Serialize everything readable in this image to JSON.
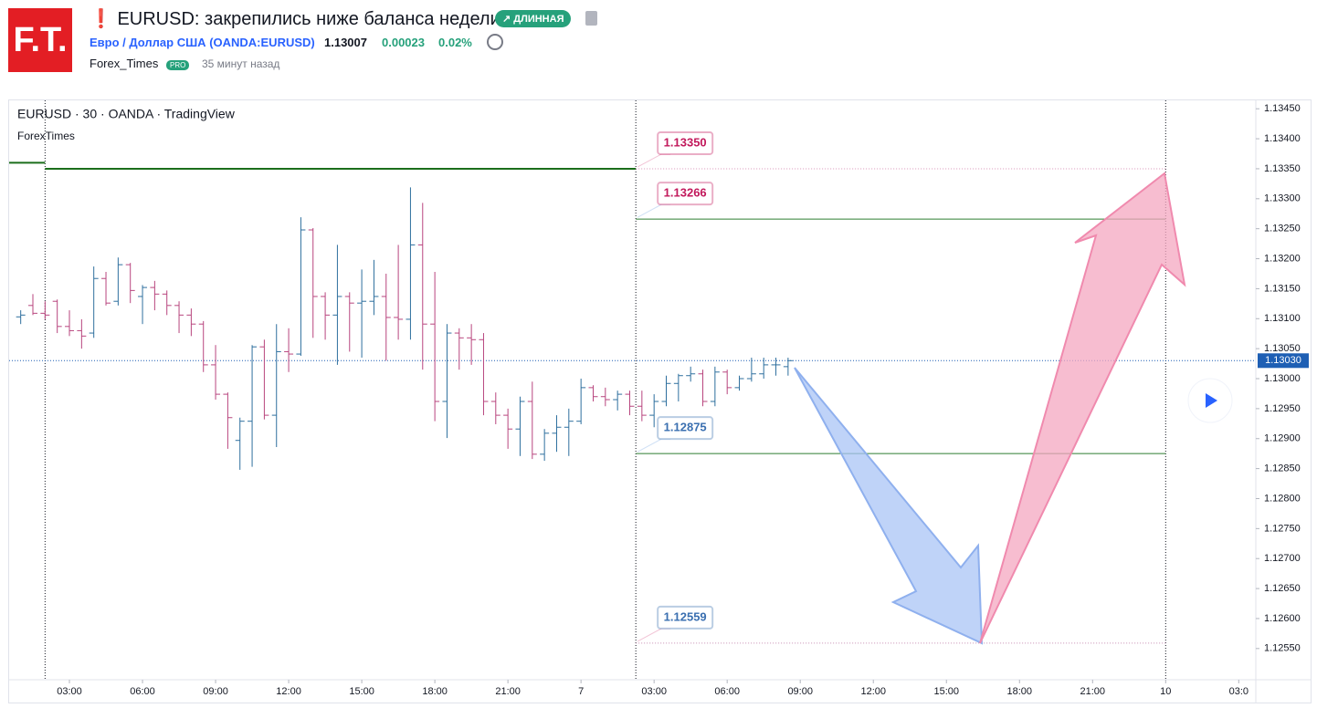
{
  "header": {
    "logo": "F.T.",
    "title": "❗ EURUSD: закрепились ниже баланса недели.",
    "badge": "↗ ДЛИННАЯ",
    "symbol_name": "Евро / Доллар США",
    "symbol_code": "(OANDA:EURUSD)",
    "price": "1.13007",
    "change": "0.00023",
    "change_pct": "0.02%",
    "author": "Forex_Times",
    "author_badge": "PRO",
    "time_ago": "35 минут назад"
  },
  "chart_data": {
    "type": "ohlc",
    "title": "EURUSD · 30 · OANDA · TradingView",
    "subtitle": "ForexTimes",
    "up_color": "#2e6f9e",
    "down_color": "#b8457e",
    "x": [
      1,
      1.5,
      2,
      2.5,
      3,
      3.5,
      4,
      4.5,
      5,
      5.5,
      6,
      6.5,
      7,
      7.5,
      8,
      8.5,
      9,
      9.5,
      10,
      10.5,
      11,
      11.5,
      12,
      12.5,
      13,
      13.5,
      14,
      14.5,
      15,
      15.5,
      16,
      16.5,
      17,
      17.5,
      18,
      18.5,
      19,
      19.5,
      20,
      20.5,
      21,
      21.5,
      22,
      22.5,
      23,
      23.5,
      24,
      24.5,
      25,
      25.5,
      26,
      26.5,
      27,
      27.5,
      28,
      28.5,
      29,
      29.5,
      30,
      30.5,
      31,
      31.5,
      32,
      32.5
    ],
    "open": [
      1.13103,
      1.13122,
      1.13109,
      1.13129,
      1.13087,
      1.1308,
      1.13076,
      1.13167,
      1.13129,
      1.1319,
      1.13137,
      1.13152,
      1.13141,
      1.13122,
      1.13106,
      1.13091,
      1.13023,
      1.12974,
      1.12897,
      1.12929,
      1.13053,
      1.12939,
      1.13045,
      1.13041,
      1.13248,
      1.13137,
      1.13106,
      1.13137,
      1.13126,
      1.13129,
      1.13137,
      1.13102,
      1.13099,
      1.13223,
      1.13091,
      1.12962,
      1.13076,
      1.13068,
      1.13065,
      1.12962,
      1.12939,
      1.12916,
      1.12962,
      1.12874,
      1.12909,
      1.12919,
      1.12929,
      1.12985,
      1.1297,
      1.12965,
      1.12974,
      1.12954,
      1.12939,
      1.12962,
      1.12992,
      1.13005,
      1.13008,
      1.12962,
      1.13011,
      1.12985,
      1.13,
      1.13008,
      1.13023,
      1.1302
    ],
    "high": [
      1.13114,
      1.13141,
      1.13129,
      1.13132,
      1.13114,
      1.13099,
      1.13187,
      1.13178,
      1.13202,
      1.13193,
      1.13156,
      1.13163,
      1.13147,
      1.13129,
      1.13117,
      1.13096,
      1.13056,
      1.12977,
      1.12935,
      1.13056,
      1.13065,
      1.13091,
      1.13084,
      1.13269,
      1.13251,
      1.13144,
      1.13223,
      1.13144,
      1.13182,
      1.13198,
      1.13175,
      1.13223,
      1.13319,
      1.13293,
      1.13178,
      1.13091,
      1.13084,
      1.13091,
      1.13076,
      1.12977,
      1.1295,
      1.1297,
      1.12995,
      1.12916,
      1.12939,
      1.1295,
      1.13,
      1.12989,
      1.12985,
      1.1298,
      1.1298,
      1.1298,
      1.12974,
      1.13005,
      1.13008,
      1.1302,
      1.13015,
      1.1302,
      1.13015,
      1.13005,
      1.13035,
      1.13035,
      1.13035,
      1.13035
    ],
    "low": [
      1.13091,
      1.13106,
      1.13099,
      1.13076,
      1.13071,
      1.1305,
      1.13068,
      1.13122,
      1.13122,
      1.13126,
      1.13091,
      1.13114,
      1.13106,
      1.13076,
      1.13071,
      1.13011,
      1.12965,
      1.12883,
      1.12848,
      1.12853,
      1.12932,
      1.12886,
      1.13011,
      1.13038,
      1.13068,
      1.13065,
      1.13023,
      1.13045,
      1.13035,
      1.13106,
      1.1303,
      1.13065,
      1.13065,
      1.13015,
      1.12929,
      1.12901,
      1.13015,
      1.13023,
      1.12939,
      1.12924,
      1.12883,
      1.12871,
      1.12866,
      1.12863,
      1.12878,
      1.12871,
      1.12924,
      1.12962,
      1.12954,
      1.12947,
      1.12939,
      1.12929,
      1.12919,
      1.12954,
      1.12962,
      1.12995,
      1.12954,
      1.12954,
      1.12974,
      1.1298,
      1.12995,
      1.13,
      1.13005,
      1.13005
    ],
    "close": [
      1.13106,
      1.13109,
      1.13106,
      1.13087,
      1.1308,
      1.13071,
      1.13167,
      1.13126,
      1.1319,
      1.13147,
      1.13152,
      1.13141,
      1.13122,
      1.13106,
      1.13091,
      1.13023,
      1.12974,
      1.12935,
      1.12929,
      1.13053,
      1.12939,
      1.13045,
      1.13041,
      1.13248,
      1.13137,
      1.13106,
      1.13137,
      1.13126,
      1.13129,
      1.13137,
      1.13102,
      1.13099,
      1.13223,
      1.13091,
      1.12962,
      1.13076,
      1.13068,
      1.13065,
      1.12962,
      1.12939,
      1.12916,
      1.12962,
      1.12874,
      1.12909,
      1.12919,
      1.12929,
      1.12985,
      1.1297,
      1.12965,
      1.12974,
      1.12954,
      1.12939,
      1.12962,
      1.12992,
      1.13005,
      1.13008,
      1.12962,
      1.13011,
      1.12985,
      1.13,
      1.13008,
      1.13023,
      1.13023,
      1.1303
    ],
    "xlim": [
      0.525,
      51.7
    ],
    "ylim": [
      1.12498,
      1.13464
    ],
    "xticks": [
      {
        "value": 3,
        "label": "03:00"
      },
      {
        "value": 6,
        "label": "06:00"
      },
      {
        "value": 9,
        "label": "09:00"
      },
      {
        "value": 12,
        "label": "12:00"
      },
      {
        "value": 15,
        "label": "15:00"
      },
      {
        "value": 18,
        "label": "18:00"
      },
      {
        "value": 21,
        "label": "21:00"
      },
      {
        "value": 24,
        "label": "7"
      },
      {
        "value": 27,
        "label": "03:00"
      },
      {
        "value": 30,
        "label": "06:00"
      },
      {
        "value": 33,
        "label": "09:00"
      },
      {
        "value": 36,
        "label": "12:00"
      },
      {
        "value": 39,
        "label": "15:00"
      },
      {
        "value": 42,
        "label": "18:00"
      },
      {
        "value": 45,
        "label": "21:00"
      },
      {
        "value": 48,
        "label": "10"
      },
      {
        "value": 51,
        "label": "03:0"
      }
    ],
    "yticks": [
      {
        "value": 1.1255,
        "label": "1.12550"
      },
      {
        "value": 1.126,
        "label": "1.12600"
      },
      {
        "value": 1.1265,
        "label": "1.12650"
      },
      {
        "value": 1.127,
        "label": "1.12700"
      },
      {
        "value": 1.1275,
        "label": "1.12750"
      },
      {
        "value": 1.128,
        "label": "1.12800"
      },
      {
        "value": 1.1285,
        "label": "1.12850"
      },
      {
        "value": 1.129,
        "label": "1.12900"
      },
      {
        "value": 1.1295,
        "label": "1.12950"
      },
      {
        "value": 1.13,
        "label": "1.13000"
      },
      {
        "value": 1.1305,
        "label": "1.13050"
      },
      {
        "value": 1.131,
        "label": "1.13100"
      },
      {
        "value": 1.1315,
        "label": "1.13150"
      },
      {
        "value": 1.132,
        "label": "1.13200"
      },
      {
        "value": 1.1325,
        "label": "1.13250"
      },
      {
        "value": 1.133,
        "label": "1.13300"
      },
      {
        "value": 1.1335,
        "label": "1.13350"
      },
      {
        "value": 1.134,
        "label": "1.13400"
      },
      {
        "value": 1.1345,
        "label": "1.13450"
      }
    ],
    "last_price": {
      "value": 1.1303,
      "label": "1.13030",
      "color": "#1e5fb4"
    },
    "vlines": [
      2,
      26.25,
      48
    ],
    "lines": [
      {
        "value": 1.1336,
        "from": 0.525,
        "to": 2,
        "color": "#1b6e1b",
        "width": 2
      },
      {
        "value": 1.1335,
        "from": 2,
        "to": 26.25,
        "color": "#1b6e1b",
        "width": 2
      }
    ],
    "levels": [
      {
        "value": 1.1335,
        "label": "1.13350",
        "color": "#c2185b",
        "line": "#d690b4",
        "dashed": true
      },
      {
        "value": 1.13266,
        "label": "1.13266",
        "color": "#c2185b",
        "line": "#2e7d32",
        "dashed": false
      },
      {
        "value": 1.12875,
        "label": "1.12875",
        "color": "#3a6fb0",
        "line": "#2e7d32",
        "dashed": false
      },
      {
        "value": 1.12559,
        "label": "1.12559",
        "color": "#3a6fb0",
        "line": "#c68ab0",
        "dashed": true
      }
    ],
    "level_from": 26.25,
    "level_to": 48
  }
}
